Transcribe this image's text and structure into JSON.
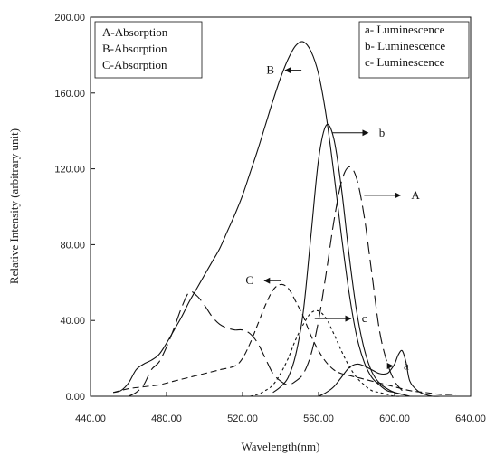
{
  "chart_data": {
    "type": "line",
    "xlabel": "Wavelength(nm)",
    "ylabel": "Relative Intensity (arbitrary unit)",
    "xlim": [
      440,
      640
    ],
    "ylim": [
      0,
      200
    ],
    "x_ticks": [
      "440.00",
      "480.00",
      "520.00",
      "560.00",
      "600.00",
      "640.00"
    ],
    "y_ticks": [
      "0.00",
      "40.00",
      "80.00",
      "120.00",
      "160.00",
      "200.00"
    ],
    "legend_left": {
      "position": "top-left",
      "entries": [
        "A-Absorption",
        "B-Absorption",
        "C-Absorption"
      ]
    },
    "legend_right": {
      "position": "top-right",
      "entries": [
        "a- Luminescence",
        "b- Luminescence",
        "c- Luminescence"
      ]
    },
    "series": [
      {
        "key": "B",
        "kind": "absorption",
        "dash": "solid",
        "color": "#111111",
        "x": [
          452,
          456,
          460,
          464,
          468,
          472,
          476,
          480,
          484,
          488,
          492,
          496,
          500,
          504,
          508,
          512,
          516,
          520,
          524,
          528,
          532,
          536,
          540,
          544,
          548,
          552,
          556,
          560,
          564,
          568,
          572,
          576,
          580,
          584,
          588,
          592,
          596,
          600,
          604
        ],
        "y": [
          2,
          3,
          7,
          14,
          17,
          19,
          22,
          28,
          35,
          42,
          50,
          57,
          64,
          71,
          78,
          87,
          96,
          106,
          118,
          130,
          143,
          156,
          168,
          178,
          185,
          187,
          182,
          170,
          148,
          118,
          85,
          55,
          32,
          18,
          10,
          6,
          3,
          2,
          1
        ]
      },
      {
        "key": "A",
        "kind": "absorption",
        "dash": "long-dash",
        "color": "#111111",
        "x": [
          460,
          464,
          468,
          472,
          476,
          480,
          484,
          488,
          492,
          496,
          500,
          504,
          508,
          512,
          516,
          520,
          524,
          528,
          532,
          536,
          540,
          544,
          548,
          552,
          556,
          560,
          564,
          568,
          572,
          576,
          580,
          584,
          588,
          592,
          596,
          600,
          604
        ],
        "y": [
          0,
          2,
          6,
          14,
          18,
          26,
          36,
          47,
          55,
          53,
          48,
          42,
          38,
          36,
          35,
          35,
          33,
          28,
          20,
          12,
          8,
          6,
          8,
          12,
          22,
          40,
          65,
          92,
          113,
          121,
          115,
          95,
          65,
          35,
          18,
          8,
          3
        ]
      },
      {
        "key": "C",
        "kind": "absorption",
        "dash": "dash",
        "color": "#111111",
        "x": [
          452,
          460,
          468,
          476,
          484,
          492,
          500,
          508,
          516,
          520,
          524,
          528,
          532,
          536,
          540,
          544,
          548,
          552,
          556,
          560,
          564,
          568,
          572,
          576,
          580,
          584,
          588,
          592,
          596,
          600,
          608,
          616,
          624,
          632
        ],
        "y": [
          2,
          4,
          5,
          6,
          8,
          10,
          12,
          14,
          16,
          20,
          28,
          38,
          48,
          56,
          59,
          57,
          50,
          42,
          32,
          24,
          18,
          14,
          12,
          11,
          10,
          9,
          8,
          7,
          6,
          5,
          3,
          2,
          1,
          1
        ]
      },
      {
        "key": "b",
        "kind": "luminescence",
        "dash": "solid",
        "color": "#111111",
        "x": [
          536,
          540,
          544,
          548,
          552,
          556,
          560,
          564,
          568,
          572,
          576,
          580,
          584,
          588,
          592,
          596,
          600,
          604,
          608
        ],
        "y": [
          2,
          5,
          10,
          22,
          45,
          85,
          125,
          143,
          136,
          110,
          75,
          45,
          25,
          13,
          7,
          4,
          2,
          1,
          0
        ]
      },
      {
        "key": "c",
        "kind": "luminescence",
        "dash": "short-dash",
        "color": "#111111",
        "x": [
          524,
          528,
          532,
          536,
          540,
          544,
          548,
          552,
          556,
          560,
          564,
          568,
          572,
          576,
          580,
          584,
          588,
          592,
          596,
          600,
          604
        ],
        "y": [
          0,
          1,
          3,
          6,
          12,
          20,
          30,
          38,
          44,
          45,
          41,
          33,
          24,
          16,
          10,
          6,
          3,
          2,
          1,
          0,
          0
        ]
      },
      {
        "key": "a",
        "kind": "luminescence",
        "dash": "solid",
        "color": "#111111",
        "x": [
          560,
          564,
          568,
          572,
          576,
          580,
          584,
          588,
          592,
          596,
          598,
          600,
          602,
          604,
          606,
          608,
          612,
          616,
          620,
          624,
          628,
          632
        ],
        "y": [
          0,
          2,
          5,
          10,
          15,
          17,
          16,
          14,
          12,
          12,
          14,
          17,
          22,
          24,
          18,
          8,
          3,
          1,
          0,
          0,
          0,
          0
        ]
      }
    ],
    "annotations": [
      {
        "label": "B",
        "value_x": 551,
        "value_y": 172,
        "arrow": "left"
      },
      {
        "label": "b",
        "value_x": 567,
        "value_y": 139,
        "arrow": "right"
      },
      {
        "label": "A",
        "value_x": 584,
        "value_y": 106,
        "arrow": "right"
      },
      {
        "label": "C",
        "value_x": 540,
        "value_y": 61,
        "arrow": "left"
      },
      {
        "label": "c",
        "value_x": 558,
        "value_y": 41,
        "arrow": "right"
      },
      {
        "label": "a",
        "value_x": 580,
        "value_y": 16,
        "arrow": "right"
      }
    ]
  }
}
